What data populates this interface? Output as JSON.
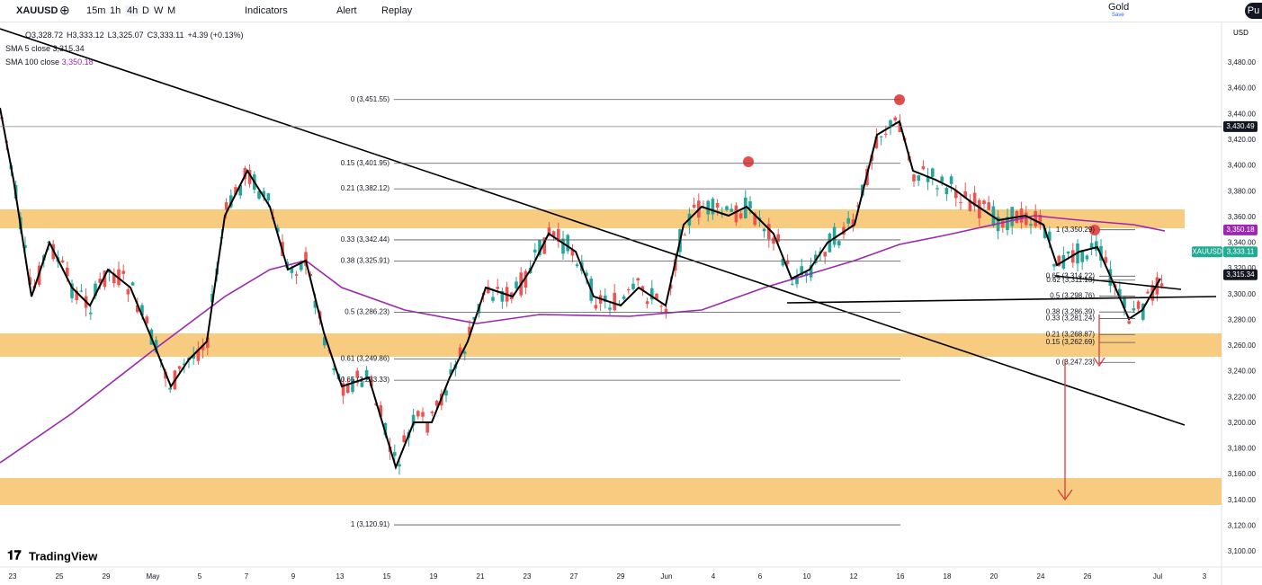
{
  "toolbar": {
    "symbol": "XAUUSD",
    "intervals": [
      "15m",
      "1h",
      "4h",
      "D",
      "W",
      "M"
    ],
    "indicators": "Indicators",
    "alert": "Alert",
    "replay": "Replay",
    "instrument": "Gold",
    "save": "Save",
    "user": "Pu"
  },
  "legend": {
    "ohlc": [
      "O3,328.72",
      "H3,333.12",
      "L3,325.07",
      "C3,333.11",
      "+4.39 (+0.13%)"
    ],
    "indicators": [
      {
        "name": "SMA 5 close",
        "value": "3,315.34"
      },
      {
        "name": "SMA 100 close",
        "value": "3,350.18"
      }
    ]
  },
  "price_axis": {
    "currency": "USD",
    "ticks": [
      {
        "value": 3480,
        "label": "3,480.00"
      },
      {
        "value": 3460,
        "label": "3,460.00"
      },
      {
        "value": 3440,
        "label": "3,440.00"
      },
      {
        "value": 3420,
        "label": "3,420.00"
      },
      {
        "value": 3400,
        "label": "3,400.00"
      },
      {
        "value": 3380,
        "label": "3,380.00"
      },
      {
        "value": 3360,
        "label": "3,360.00"
      },
      {
        "value": 3340,
        "label": "3,340.00"
      },
      {
        "value": 3320,
        "label": "3,320.00"
      },
      {
        "value": 3300,
        "label": "3,300.00"
      },
      {
        "value": 3280,
        "label": "3,280.00"
      },
      {
        "value": 3260,
        "label": "3,260.00"
      },
      {
        "value": 3240,
        "label": "3,240.00"
      },
      {
        "value": 3220,
        "label": "3,220.00"
      },
      {
        "value": 3200,
        "label": "3,200.00"
      },
      {
        "value": 3180,
        "label": "3,180.00"
      },
      {
        "value": 3160,
        "label": "3,160.00"
      },
      {
        "value": 3140,
        "label": "3,140.00"
      },
      {
        "value": 3120,
        "label": "3,120.00"
      },
      {
        "value": 3100,
        "label": "3,100.00"
      }
    ]
  },
  "price_badges": [
    {
      "value": 3430.49,
      "label": "3,430.49",
      "color": "#131722"
    },
    {
      "value": 3350.18,
      "label": "3,350.18",
      "color": "#9c27b0"
    },
    {
      "value": 3333.11,
      "label": "3,333.11",
      "tag": "XAUUSD",
      "color": "#22ab94"
    },
    {
      "value": 3315.34,
      "label": "3,315.34",
      "color": "#131722"
    }
  ],
  "time_axis": {
    "labels": [
      "23",
      "25",
      "29",
      "May",
      "5",
      "7",
      "9",
      "13",
      "15",
      "19",
      "21",
      "23",
      "27",
      "29",
      "Jun",
      "4",
      "6",
      "10",
      "12",
      "16",
      "18",
      "20",
      "24",
      "26",
      "Jul",
      "3"
    ]
  },
  "fib_main": {
    "levels": [
      {
        "value": 3451.55,
        "label": "0 (3,451.55)"
      },
      {
        "value": 3401.95,
        "label": "0.15 (3,401.95)"
      },
      {
        "value": 3382.12,
        "label": "0.21 (3,382.12)"
      },
      {
        "value": 3342.44,
        "label": "0.33 (3,342.44)"
      },
      {
        "value": 3325.91,
        "label": "0.38 (3,325.91)"
      },
      {
        "value": 3286.23,
        "label": "0.5 (3,286.23)"
      },
      {
        "value": 3249.86,
        "label": "0.61 (3,249.86)"
      },
      {
        "value": 3233.33,
        "label": "0.65 (3,233.33)"
      },
      {
        "value": 3120.91,
        "label": "1 (3,120.91)"
      }
    ]
  },
  "fib_recent": {
    "levels": [
      {
        "value": 3350.29,
        "label": "1 (3,350.29)"
      },
      {
        "value": 3314.22,
        "label": "0.65 (3,314.22)"
      },
      {
        "value": 3311.13,
        "label": "0.62 (3,311.13)"
      },
      {
        "value": 3298.76,
        "label": "0.5 (3,298.76)"
      },
      {
        "value": 3286.39,
        "label": "0.38 (3,286.39)"
      },
      {
        "value": 3281.24,
        "label": "0.33 (3,281.24)"
      },
      {
        "value": 3268.87,
        "label": "0.21 (3,268.87)"
      },
      {
        "value": 3262.69,
        "label": "0.15 (3,262.69)"
      },
      {
        "value": 3247.23,
        "label": "0 (3,247.23)"
      }
    ]
  },
  "branding": "TradingView"
}
